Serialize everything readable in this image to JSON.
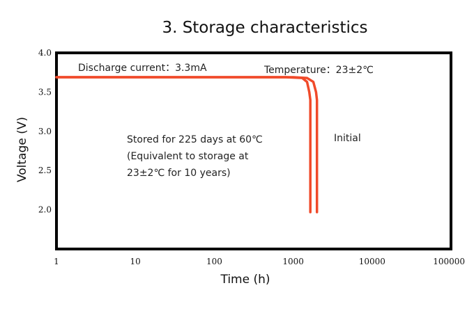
{
  "chart_data": {
    "type": "line",
    "title": "3. Storage characteristics",
    "xlabel": "Time (h)",
    "ylabel": "Voltage (V)",
    "x_scale": "log",
    "xlim": [
      1,
      100000
    ],
    "ylim": [
      1.5,
      4.0
    ],
    "x_ticks": [
      "1",
      "10",
      "100",
      "1000",
      "10000",
      "100000"
    ],
    "y_ticks": [
      "4.0",
      "3.5",
      "3.0",
      "2.5",
      "2.0"
    ],
    "grid": false,
    "line_color": "#f04a2a",
    "annotations": {
      "discharge": "Discharge current：3.3mA",
      "temperature": "Temperature：23±2℃",
      "stored_lines": [
        "Stored for 225 days at 60℃",
        "(Equivalent to storage at",
        "23±2℃ for 10 years)"
      ],
      "initial": "Initial"
    },
    "series": [
      {
        "name": "Stored for 225 days at 60℃",
        "x": [
          1,
          800,
          1300,
          1500,
          1600,
          1650,
          1650
        ],
        "y": [
          3.69,
          3.69,
          3.68,
          3.63,
          3.5,
          3.4,
          1.97
        ]
      },
      {
        "name": "Initial",
        "x": [
          1,
          1000,
          1500,
          1800,
          1950,
          2000,
          2000
        ],
        "y": [
          3.69,
          3.69,
          3.68,
          3.63,
          3.5,
          3.4,
          1.97
        ]
      }
    ]
  }
}
